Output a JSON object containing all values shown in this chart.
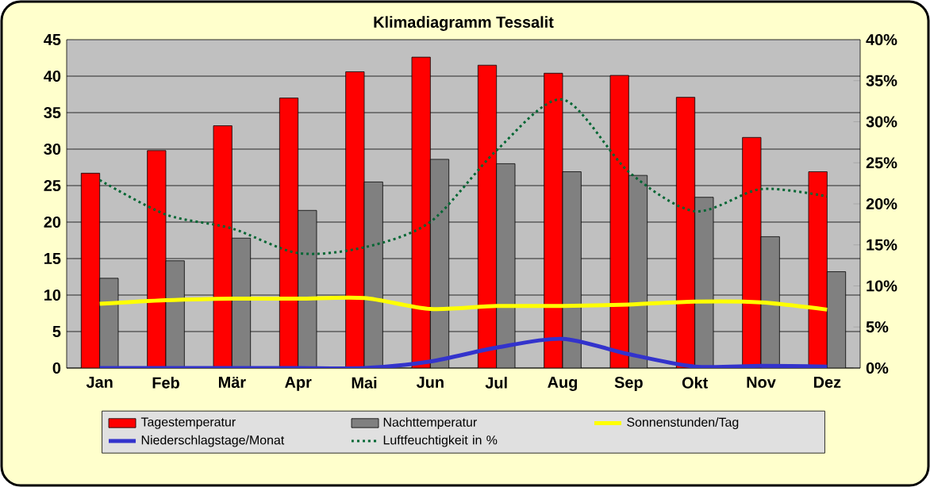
{
  "chart_data": {
    "type": "bar",
    "title": "Klimadiagramm Tessalit",
    "categories": [
      "Jan",
      "Feb",
      "Mär",
      "Apr",
      "Mai",
      "Jun",
      "Jul",
      "Aug",
      "Sep",
      "Okt",
      "Nov",
      "Dez"
    ],
    "series": [
      {
        "name": "Tagestemperatur",
        "color": "#ff0000",
        "values": [
          26.7,
          29.8,
          33.2,
          37.0,
          40.6,
          42.6,
          41.5,
          40.4,
          40.1,
          37.1,
          31.6,
          26.9
        ]
      },
      {
        "name": "Nachttemperatur",
        "color": "#808080",
        "values": [
          12.3,
          14.7,
          17.8,
          21.6,
          25.5,
          28.6,
          28.0,
          26.9,
          26.4,
          23.4,
          18.0,
          13.2
        ]
      },
      {
        "name": "Sonnenstunden/Tag",
        "color": "#ffff00",
        "type": "line",
        "values": [
          8.8,
          9.3,
          9.5,
          9.5,
          9.6,
          8.1,
          8.5,
          8.5,
          8.7,
          9.1,
          9.0,
          8.0
        ]
      },
      {
        "name": "Niederschlagstage/Monat",
        "color": "#3333cc",
        "type": "line",
        "values": [
          0,
          0,
          0,
          0,
          0,
          0.9,
          2.8,
          4.0,
          1.9,
          0.2,
          0.3,
          0.2
        ]
      },
      {
        "name": "Luftfeuchtigkeit in %",
        "color": "#006633",
        "type": "line",
        "line_style": "dotted",
        "axis": "y2",
        "values": [
          22.9,
          18.7,
          17.0,
          14.0,
          14.7,
          17.8,
          26.5,
          32.7,
          23.9,
          19.1,
          21.8,
          20.9
        ]
      }
    ],
    "ylim": [
      0,
      45
    ],
    "yticks": [
      0,
      5,
      10,
      15,
      20,
      25,
      30,
      35,
      40,
      45
    ],
    "y2lim": [
      0,
      40
    ],
    "y2ticks": [
      {
        "value": 0,
        "label": "0%"
      },
      {
        "value": 5,
        "label": "5%"
      },
      {
        "value": 10,
        "label": "10%"
      },
      {
        "value": 15,
        "label": "15%"
      },
      {
        "value": 20,
        "label": "20%"
      },
      {
        "value": 25,
        "label": "25%"
      },
      {
        "value": 30,
        "label": "30%"
      },
      {
        "value": 35,
        "label": "35%"
      },
      {
        "value": 40,
        "label": "40%"
      }
    ],
    "grid": "y",
    "legend": "bottom",
    "marker": "none"
  }
}
